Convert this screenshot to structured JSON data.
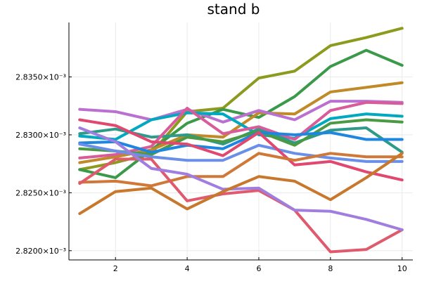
{
  "chart_data": {
    "type": "line",
    "title": "stand b",
    "xlabel": "",
    "ylabel": "",
    "xlim": [
      0.7,
      10.3
    ],
    "ylim": [
      0.0081925,
      0.0083993
    ],
    "x_ticks": [
      2,
      4,
      6,
      8,
      10
    ],
    "x_tick_labels": [
      "2",
      "4",
      "6",
      "8",
      "10"
    ],
    "y_ticks": [
      0.00282,
      0.002825,
      0.00283,
      0.002835
    ],
    "y_tick_labels": [
      "2.8200×10⁻³",
      "2.8250×10⁻³",
      "2.8300×10⁻³",
      "2.8350×10⁻³"
    ],
    "ylim_display": [
      0.0028192,
      0.0028397
    ],
    "grid": true,
    "legend": "none",
    "x": [
      1,
      2,
      3,
      4,
      5,
      6,
      7,
      8,
      9,
      10
    ],
    "series": [
      {
        "color": "#8c9a1e",
        "values": [
          0.002827,
          0.0028276,
          0.0028284,
          0.002832,
          0.0028323,
          0.0028349,
          0.0028355,
          0.0028377,
          0.0028384,
          0.0028392
        ]
      },
      {
        "color": "#3a9a4a",
        "values": [
          0.002827,
          0.0028263,
          0.0028287,
          0.002831,
          0.0028322,
          0.0028315,
          0.0028333,
          0.0028359,
          0.0028373,
          0.002836
        ]
      },
      {
        "color": "#c08a28",
        "values": [
          0.0028276,
          0.0028281,
          0.0028287,
          0.00283,
          0.0028298,
          0.0028319,
          0.0028318,
          0.0028337,
          0.0028341,
          0.0028345
        ]
      },
      {
        "color": "#b970d0",
        "values": [
          0.0028322,
          0.002832,
          0.0028313,
          0.0028322,
          0.0028311,
          0.0028321,
          0.0028313,
          0.0028329,
          0.0028329,
          0.0028328
        ]
      },
      {
        "color": "#00a8c0",
        "values": [
          0.0028299,
          0.0028296,
          0.0028313,
          0.0028319,
          0.0028318,
          0.00283,
          0.0028297,
          0.0028314,
          0.0028318,
          0.0028316
        ]
      },
      {
        "color": "#2e9a8a",
        "values": [
          0.0028301,
          0.0028305,
          0.0028298,
          0.00283,
          0.0028292,
          0.0028305,
          0.0028293,
          0.0028304,
          0.0028306,
          0.0028285
        ]
      },
      {
        "color": "#d95c9a",
        "values": [
          0.002828,
          0.0028283,
          0.002829,
          0.0028323,
          0.0028301,
          0.0028307,
          0.0028296,
          0.0028321,
          0.0028328,
          0.0028327
        ]
      },
      {
        "color": "#4a9a44",
        "values": [
          0.0028288,
          0.0028286,
          0.0028283,
          0.0028298,
          0.0028294,
          0.0028303,
          0.0028291,
          0.002831,
          0.0028313,
          0.0028311
        ]
      },
      {
        "color": "#1f86e0",
        "values": [
          0.0028293,
          0.0028294,
          0.0028285,
          0.0028291,
          0.0028288,
          0.0028302,
          0.00283,
          0.0028302,
          0.0028296,
          0.0028296
        ]
      },
      {
        "color": "#6a8fe8",
        "values": [
          0.0028292,
          0.0028286,
          0.0028281,
          0.0028278,
          0.0028278,
          0.0028291,
          0.0028284,
          0.002828,
          0.0028277,
          0.0028277
        ]
      },
      {
        "color": "#e04870",
        "values": [
          0.0028313,
          0.0028308,
          0.0028294,
          0.0028292,
          0.0028282,
          0.0028302,
          0.0028274,
          0.0028277,
          0.0028268,
          0.0028261
        ]
      },
      {
        "color": "#d07838",
        "values": [
          0.0028259,
          0.002826,
          0.0028256,
          0.0028264,
          0.0028264,
          0.0028284,
          0.0028278,
          0.0028284,
          0.0028281,
          0.0028281
        ]
      },
      {
        "color": "#e05a6e",
        "values": [
          0.0028258,
          0.0028279,
          0.0028279,
          0.0028243,
          0.0028249,
          0.0028252,
          0.0028235,
          0.0028199,
          0.0028201,
          0.0028218
        ]
      },
      {
        "color": "#a07ee0",
        "values": [
          0.0028306,
          0.0028294,
          0.0028271,
          0.0028266,
          0.0028253,
          0.0028254,
          0.0028235,
          0.0028234,
          0.0028227,
          0.0028218
        ]
      },
      {
        "color": "#c8782c",
        "values": [
          0.0028232,
          0.0028251,
          0.0028254,
          0.0028236,
          0.0028251,
          0.0028264,
          0.002826,
          0.0028244,
          0.0028263,
          0.0028284
        ]
      }
    ]
  }
}
